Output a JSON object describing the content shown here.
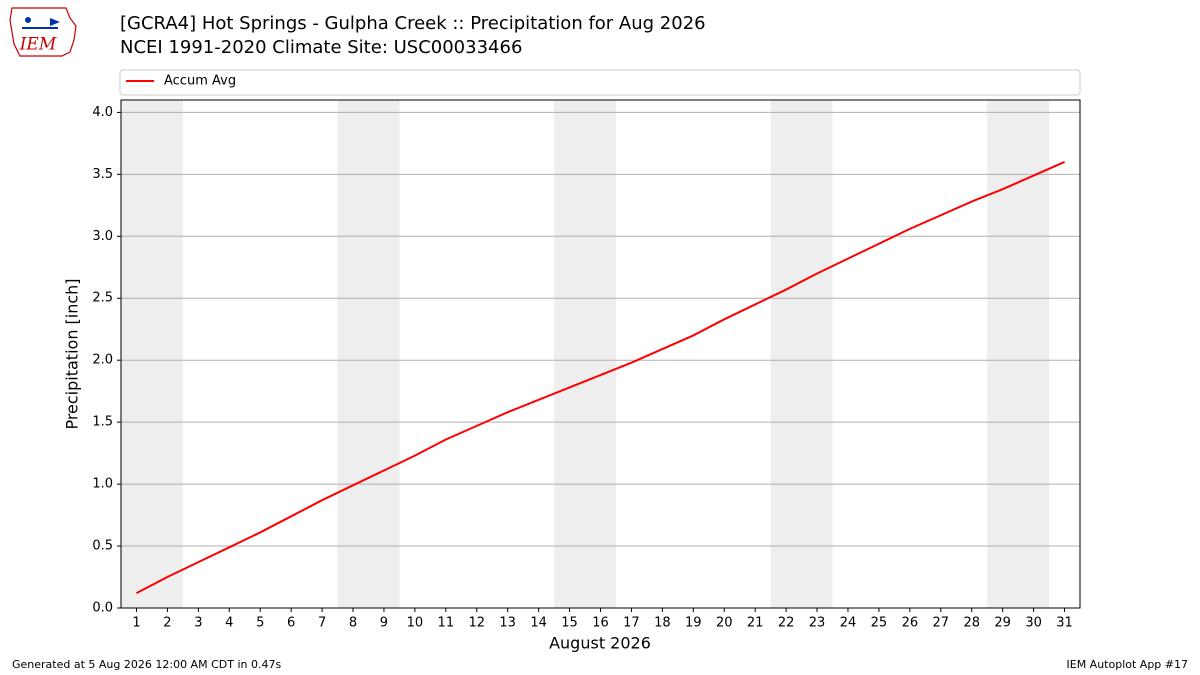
{
  "chart_data": {
    "type": "line",
    "title": "[GCRA4] Hot Springs - Gulpha Creek :: Precipitation for Aug 2026",
    "subtitle": "NCEI 1991-2020 Climate Site: USC00033466",
    "x_label": "August 2026",
    "y_label": "Precipitation [inch]",
    "x": [
      1,
      2,
      3,
      4,
      5,
      6,
      7,
      8,
      9,
      10,
      11,
      12,
      13,
      14,
      15,
      16,
      17,
      18,
      19,
      20,
      21,
      22,
      23,
      24,
      25,
      26,
      27,
      28,
      29,
      30,
      31
    ],
    "series": [
      {
        "name": "Accum Avg",
        "color": "#ff0000",
        "values": [
          0.12,
          0.25,
          0.37,
          0.49,
          0.61,
          0.74,
          0.87,
          0.99,
          1.11,
          1.23,
          1.36,
          1.47,
          1.58,
          1.68,
          1.78,
          1.88,
          1.98,
          2.09,
          2.2,
          2.33,
          2.45,
          2.57,
          2.7,
          2.82,
          2.94,
          3.06,
          3.17,
          3.28,
          3.38,
          3.49,
          3.6
        ]
      }
    ],
    "xlim": [
      0.5,
      31.5
    ],
    "ylim": [
      0,
      4.1
    ],
    "xticks": [
      1,
      2,
      3,
      4,
      5,
      6,
      7,
      8,
      9,
      10,
      11,
      12,
      13,
      14,
      15,
      16,
      17,
      18,
      19,
      20,
      21,
      22,
      23,
      24,
      25,
      26,
      27,
      28,
      29,
      30,
      31
    ],
    "yticks": [
      {
        "value": 0,
        "label": "0.0"
      },
      0.5,
      {
        "value": 1,
        "label": "1.0"
      },
      1.5,
      {
        "value": 2,
        "label": "2.0"
      },
      2.5,
      {
        "value": 3,
        "label": "3.0"
      },
      3.5,
      {
        "value": 4,
        "label": "4.0"
      }
    ],
    "shaded_x": [
      [
        0.5,
        2.5
      ],
      [
        7.5,
        9.5
      ],
      [
        14.5,
        16.5
      ],
      [
        21.5,
        23.5
      ],
      [
        28.5,
        30.5
      ]
    ],
    "shade_color": "#eeeeee",
    "grid": true,
    "legend": "top"
  },
  "logo": "IEM",
  "footer": {
    "left": "Generated at 5 Aug 2026 12:00 AM CDT in 0.47s",
    "right": "IEM Autoplot App #17"
  }
}
